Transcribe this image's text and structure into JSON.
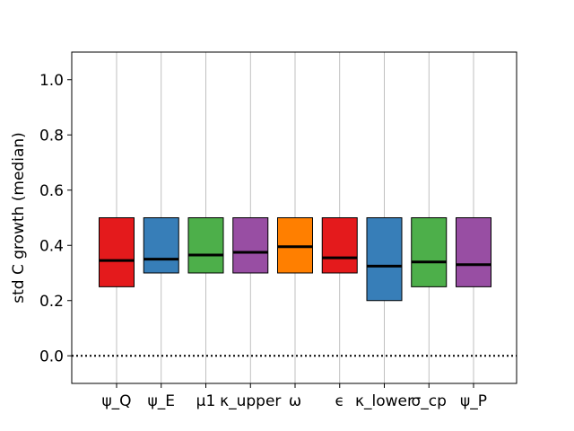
{
  "chart_data": {
    "type": "box",
    "ylabel": "std C growth (median)",
    "xlabel": "",
    "ylim": [
      -0.1,
      1.1
    ],
    "yticks": [
      0.0,
      0.2,
      0.4,
      0.6,
      0.8,
      1.0
    ],
    "ytick_labels": [
      "0.0",
      "0.2",
      "0.4",
      "0.6",
      "0.8",
      "1.0"
    ],
    "grid": "vertical",
    "reference_line": {
      "y": 0.0,
      "style": "dotted"
    },
    "categories": [
      "ψ_Q",
      "ψ_E",
      "μ1",
      "κ_upper",
      "ω",
      "ϵ",
      "κ_lower",
      "σ_cp",
      "ψ_P"
    ],
    "boxes": [
      {
        "q1": 0.25,
        "median": 0.345,
        "q3": 0.5,
        "color": "#e41a1c"
      },
      {
        "q1": 0.3,
        "median": 0.35,
        "q3": 0.5,
        "color": "#377eb8"
      },
      {
        "q1": 0.3,
        "median": 0.365,
        "q3": 0.5,
        "color": "#4daf4a"
      },
      {
        "q1": 0.3,
        "median": 0.375,
        "q3": 0.5,
        "color": "#984ea3"
      },
      {
        "q1": 0.3,
        "median": 0.395,
        "q3": 0.5,
        "color": "#ff7f00"
      },
      {
        "q1": 0.3,
        "median": 0.355,
        "q3": 0.5,
        "color": "#e41a1c"
      },
      {
        "q1": 0.2,
        "median": 0.325,
        "q3": 0.5,
        "color": "#377eb8"
      },
      {
        "q1": 0.25,
        "median": 0.34,
        "q3": 0.5,
        "color": "#4daf4a"
      },
      {
        "q1": 0.25,
        "median": 0.33,
        "q3": 0.5,
        "color": "#984ea3"
      }
    ]
  }
}
